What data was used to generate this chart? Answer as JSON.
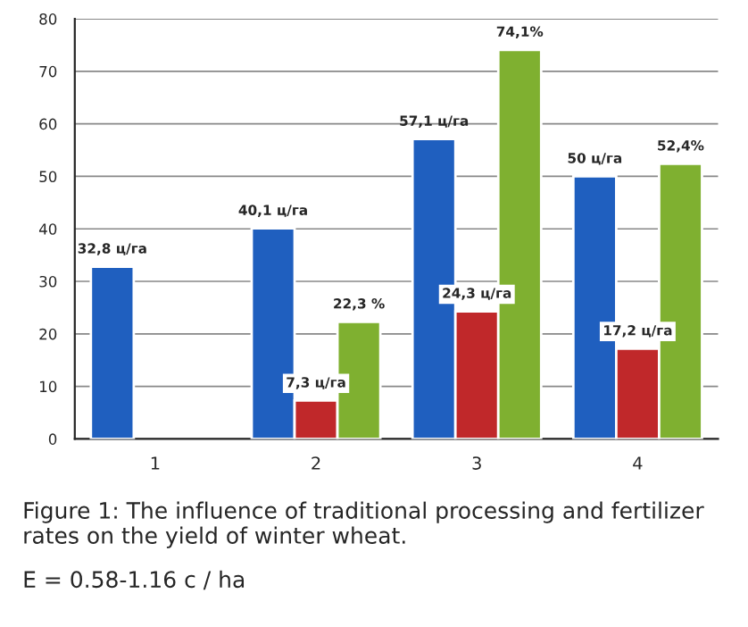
{
  "chart_data": {
    "type": "bar",
    "categories": [
      "1",
      "2",
      "3",
      "4"
    ],
    "series": [
      {
        "color": "#1f5fbf",
        "values": [
          32.8,
          40.1,
          57.1,
          50
        ],
        "value_labels": [
          "32,8 ц/га",
          "40,1 ц/га",
          "57,1 ц/га",
          "50 ц/га"
        ]
      },
      {
        "color": "#c0282a",
        "values": [
          null,
          7.3,
          24.3,
          17.2
        ],
        "value_labels": [
          null,
          "7,3 ц/га",
          "24,3 ц/га",
          "17,2 ц/га"
        ]
      },
      {
        "color": "#7fb030",
        "values": [
          null,
          22.3,
          74.1,
          52.4
        ],
        "value_labels": [
          null,
          "22,3 %",
          "74,1%",
          "52,4%"
        ]
      }
    ],
    "ylim": [
      0,
      80
    ],
    "yticks": [
      0,
      10,
      20,
      30,
      40,
      50,
      60,
      70,
      80
    ],
    "grid": "y",
    "annotations": [
      "Figure 1: The influence of traditional processing and fertilizer rates on the yield of winter wheat.",
      "E = 0.58-1.16 c / ha"
    ]
  }
}
